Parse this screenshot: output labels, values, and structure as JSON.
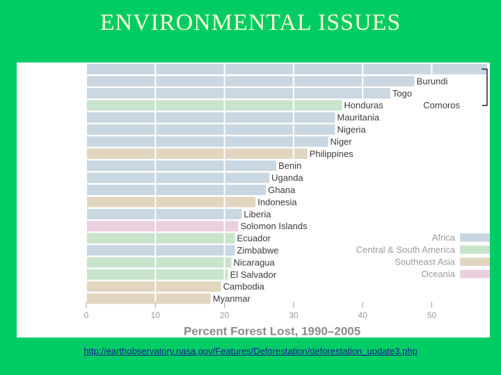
{
  "slide": {
    "title": "ENVIRONMENTAL ISSUES",
    "source_url": "http://earthobservatory.nasa.gov/Features/Deforestation/deforestation_update3.php"
  },
  "colors": {
    "background": "#00cc66",
    "title": "#ffffcc",
    "Africa": "#c9d7e2",
    "Central & South America": "#c8e4cb",
    "Southeast Asia": "#e2d6c1",
    "Oceania": "#eacfe0",
    "label": "#3a3a3a",
    "axis": "#999999"
  },
  "chart_data": {
    "type": "bar",
    "orientation": "horizontal",
    "xlabel": "Percent Forest Lost, 1990–2005",
    "xlim": [
      0,
      58
    ],
    "xticks": [
      0,
      10,
      20,
      30,
      40,
      50
    ],
    "categories": [
      "",
      "Burundi",
      "Togo",
      "Honduras",
      "Mauritania",
      "Nigeria",
      "Niger",
      "Philippines",
      "Benin",
      "Uganda",
      "Ghana",
      "Indonesia",
      "Liberia",
      "Solomon Islands",
      "Ecuador",
      "Zimbabwe",
      "Nicaragua",
      "El Salvador",
      "Cambodia",
      "Myanmar"
    ],
    "values": [
      58,
      47.5,
      44,
      37,
      36,
      36,
      35,
      32,
      27.5,
      26.5,
      26,
      24.5,
      22.5,
      22,
      21.5,
      21.5,
      21,
      20.5,
      19.5,
      18
    ],
    "regions": [
      "Africa",
      "Africa",
      "Africa",
      "Central & South America",
      "Africa",
      "Africa",
      "Africa",
      "Southeast Asia",
      "Africa",
      "Africa",
      "Africa",
      "Southeast Asia",
      "Africa",
      "Oceania",
      "Central & South America",
      "Africa",
      "Central & South America",
      "Central & South America",
      "Southeast Asia",
      "Southeast Asia"
    ],
    "legend": [
      "Africa",
      "Central & South America",
      "Southeast Asia",
      "Oceania"
    ],
    "legend_position": "bottom-right",
    "annotations": [
      {
        "text": "Comoros",
        "attached_to": "top bar"
      }
    ]
  }
}
